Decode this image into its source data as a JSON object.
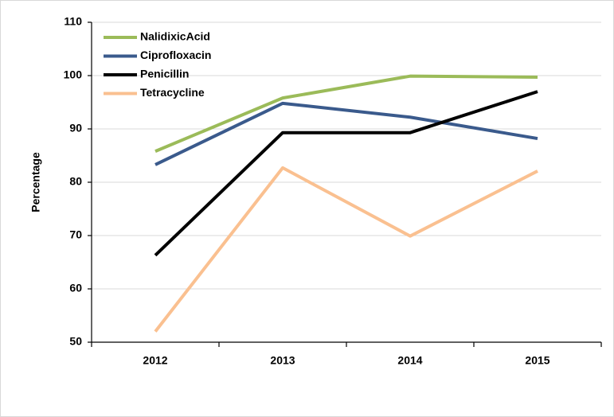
{
  "chart_data": {
    "type": "line",
    "y_label": "Percentage",
    "categories": [
      "2012",
      "2013",
      "2014",
      "2015"
    ],
    "series": [
      {
        "name": "NalidixicAcid",
        "color": "#9bbb59",
        "values": [
          85.8,
          95.8,
          99.9,
          99.7
        ]
      },
      {
        "name": "Ciprofloxacin",
        "color": "#3a5a8c",
        "values": [
          83.3,
          94.8,
          92.2,
          88.2
        ]
      },
      {
        "name": "Penicillin",
        "color": "#000000",
        "values": [
          66.3,
          89.3,
          89.3,
          97
        ]
      },
      {
        "name": "Tetracycline",
        "color": "#fac090",
        "values": [
          52,
          82.7,
          69.9,
          82.1
        ]
      }
    ],
    "ylim": [
      50,
      110
    ],
    "yticks": [
      50,
      60,
      70,
      80,
      90,
      100,
      110
    ],
    "grid": true,
    "legend": "upper left"
  }
}
